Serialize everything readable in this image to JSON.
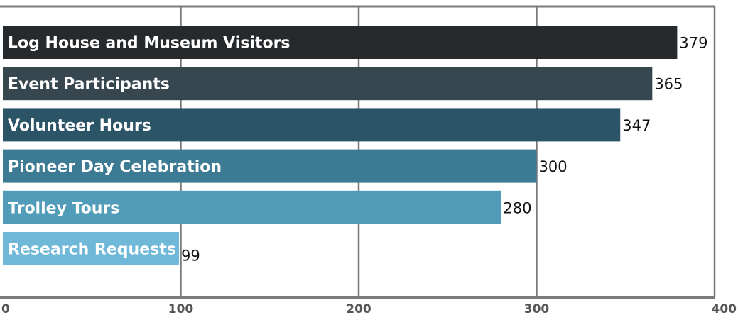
{
  "chart_data": {
    "type": "bar",
    "orientation": "horizontal",
    "categories": [
      "Log House and Museum Visitors",
      "Event Participants",
      "Volunteer Hours",
      "Pioneer Day Celebration",
      "Trolley Tours",
      "Research Requests"
    ],
    "values": [
      379,
      365,
      347,
      300,
      280,
      99
    ],
    "value_labels": [
      "379",
      "365",
      "347",
      "300",
      "280",
      "99"
    ],
    "colors": [
      "#272a2d",
      "#36474f",
      "#2c5467",
      "#3d7a93",
      "#519db9",
      "#6fb8d8"
    ],
    "xlim": [
      0,
      400
    ],
    "x_ticks": [
      "0",
      "100",
      "200",
      "300",
      "400"
    ],
    "x_tick_values": [
      0,
      100,
      200,
      300,
      400
    ],
    "grid": true,
    "legend": "none",
    "title": "",
    "xlabel": "",
    "ylabel": ""
  }
}
